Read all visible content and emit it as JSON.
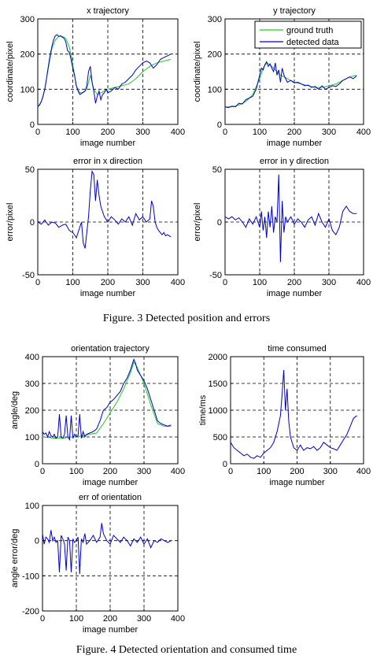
{
  "captions": {
    "fig3": "Figure. 3 Detected position and errors",
    "fig4": "Figure. 4 Detected orientation and consumed time"
  },
  "colors": {
    "ground_truth": "#22cc22",
    "detected": "#0000cc",
    "grid": "#000000",
    "axis": "#000000"
  },
  "chart_data": [
    {
      "id": "x-trajectory",
      "type": "line",
      "title": "x trajectory",
      "xlabel": "image number",
      "ylabel": "coordinate/pixel",
      "xlim": [
        0,
        400
      ],
      "ylim": [
        0,
        300
      ],
      "xticks": [
        0,
        100,
        200,
        300,
        400
      ],
      "yticks": [
        0,
        100,
        200,
        300
      ],
      "grid": true,
      "legend": null,
      "series": [
        {
          "name": "ground truth",
          "color": "#22cc22",
          "x": [
            0,
            10,
            20,
            30,
            40,
            50,
            60,
            70,
            80,
            90,
            100,
            110,
            120,
            130,
            140,
            150,
            160,
            170,
            180,
            190,
            200,
            220,
            240,
            260,
            280,
            300,
            320,
            340,
            360,
            380
          ],
          "y": [
            50,
            65,
            100,
            160,
            215,
            240,
            250,
            250,
            245,
            220,
            170,
            110,
            90,
            90,
            100,
            140,
            100,
            85,
            90,
            95,
            100,
            105,
            110,
            115,
            130,
            150,
            165,
            175,
            180,
            185
          ]
        },
        {
          "color": "#0000cc",
          "x": [
            0,
            5,
            10,
            15,
            20,
            25,
            30,
            35,
            40,
            45,
            50,
            55,
            60,
            65,
            70,
            75,
            80,
            85,
            90,
            95,
            100,
            105,
            110,
            115,
            120,
            125,
            130,
            135,
            140,
            145,
            150,
            155,
            160,
            165,
            170,
            175,
            180,
            185,
            190,
            195,
            200,
            210,
            220,
            230,
            240,
            250,
            260,
            270,
            280,
            290,
            300,
            310,
            320,
            330,
            340,
            350,
            360,
            370,
            380
          ],
          "y": [
            50,
            55,
            65,
            80,
            100,
            130,
            165,
            195,
            220,
            240,
            252,
            255,
            250,
            252,
            248,
            245,
            235,
            210,
            205,
            185,
            160,
            140,
            110,
            95,
            85,
            88,
            92,
            95,
            110,
            150,
            165,
            120,
            95,
            60,
            80,
            95,
            70,
            85,
            90,
            100,
            90,
            95,
            105,
            100,
            115,
            120,
            130,
            140,
            155,
            165,
            175,
            180,
            175,
            160,
            170,
            185,
            190,
            195,
            200
          ]
        }
      ]
    },
    {
      "id": "y-trajectory",
      "type": "line",
      "title": "y  trajectory",
      "xlabel": "image number",
      "ylabel": "coordinate/pixel",
      "xlim": [
        0,
        400
      ],
      "ylim": [
        0,
        300
      ],
      "xticks": [
        0,
        100,
        200,
        300,
        400
      ],
      "yticks": [
        0,
        100,
        200,
        300
      ],
      "grid": true,
      "legend": "top-right",
      "series": [
        {
          "name": "ground truth",
          "color": "#22cc22",
          "x": [
            0,
            20,
            40,
            60,
            80,
            100,
            110,
            120,
            130,
            140,
            150,
            160,
            180,
            200,
            220,
            240,
            260,
            280,
            300,
            320,
            340,
            360,
            380
          ],
          "y": [
            50,
            50,
            55,
            65,
            85,
            130,
            160,
            175,
            170,
            160,
            150,
            140,
            130,
            120,
            115,
            110,
            105,
            105,
            110,
            115,
            125,
            135,
            140
          ]
        },
        {
          "name": "detected data",
          "color": "#0000cc",
          "x": [
            0,
            10,
            20,
            30,
            40,
            50,
            60,
            70,
            80,
            90,
            100,
            105,
            110,
            115,
            120,
            125,
            130,
            135,
            140,
            145,
            150,
            155,
            160,
            165,
            170,
            175,
            180,
            190,
            200,
            210,
            220,
            230,
            240,
            250,
            260,
            270,
            280,
            290,
            300,
            310,
            320,
            330,
            340,
            350,
            360,
            370,
            380
          ],
          "y": [
            50,
            48,
            52,
            50,
            60,
            58,
            70,
            75,
            80,
            100,
            140,
            160,
            155,
            170,
            178,
            165,
            172,
            160,
            150,
            175,
            140,
            155,
            120,
            160,
            140,
            130,
            120,
            125,
            118,
            120,
            115,
            110,
            112,
            105,
            108,
            100,
            110,
            100,
            105,
            110,
            108,
            115,
            125,
            130,
            135,
            130,
            138
          ]
        }
      ]
    },
    {
      "id": "x-error",
      "type": "line",
      "title": "error in x direction",
      "xlabel": "image number",
      "ylabel": "error/pixel",
      "xlim": [
        0,
        400
      ],
      "ylim": [
        -50,
        50
      ],
      "xticks": [
        0,
        100,
        200,
        300,
        400
      ],
      "yticks": [
        -50,
        0,
        50
      ],
      "grid": true,
      "legend": null,
      "series": [
        {
          "color": "#0000cc",
          "x": [
            0,
            10,
            20,
            30,
            40,
            50,
            60,
            70,
            80,
            90,
            100,
            105,
            110,
            115,
            120,
            125,
            130,
            135,
            140,
            145,
            150,
            155,
            160,
            165,
            170,
            175,
            180,
            185,
            190,
            200,
            210,
            220,
            230,
            240,
            250,
            260,
            270,
            280,
            290,
            300,
            310,
            320,
            325,
            330,
            335,
            340,
            345,
            350,
            355,
            360,
            365,
            370,
            380
          ],
          "y": [
            0,
            -2,
            2,
            -3,
            0,
            -1,
            -5,
            -3,
            -2,
            -8,
            -10,
            -12,
            -15,
            -10,
            -5,
            0,
            -20,
            -25,
            -10,
            5,
            30,
            48,
            45,
            20,
            40,
            25,
            15,
            10,
            5,
            0,
            5,
            2,
            -2,
            3,
            0,
            5,
            -3,
            8,
            2,
            5,
            0,
            3,
            20,
            15,
            0,
            -5,
            -8,
            -10,
            -12,
            -10,
            -13,
            -12,
            -14
          ]
        }
      ]
    },
    {
      "id": "y-error",
      "type": "line",
      "title": "error in y direction",
      "xlabel": "image number",
      "ylabel": "error/pixel",
      "xlim": [
        0,
        400
      ],
      "ylim": [
        -50,
        50
      ],
      "xticks": [
        0,
        100,
        200,
        300,
        400
      ],
      "yticks": [
        -50,
        0,
        50
      ],
      "grid": true,
      "legend": null,
      "series": [
        {
          "color": "#0000cc",
          "x": [
            0,
            10,
            20,
            30,
            40,
            50,
            60,
            70,
            80,
            90,
            100,
            105,
            110,
            115,
            120,
            125,
            130,
            135,
            140,
            145,
            150,
            155,
            160,
            165,
            170,
            175,
            180,
            190,
            200,
            210,
            220,
            230,
            240,
            250,
            260,
            270,
            280,
            290,
            300,
            310,
            320,
            330,
            340,
            350,
            360,
            370,
            380
          ],
          "y": [
            5,
            3,
            5,
            2,
            4,
            0,
            -5,
            3,
            -2,
            5,
            -5,
            10,
            -8,
            5,
            -15,
            10,
            -5,
            15,
            -10,
            5,
            0,
            45,
            -38,
            20,
            -10,
            5,
            0,
            5,
            -2,
            3,
            0,
            -5,
            2,
            5,
            -3,
            8,
            0,
            -5,
            3,
            -8,
            -12,
            -5,
            10,
            15,
            10,
            8,
            8
          ]
        }
      ]
    },
    {
      "id": "orientation-trajectory",
      "type": "line",
      "title": "orientation trajectory",
      "xlabel": "image number",
      "ylabel": "angle/deg",
      "xlim": [
        0,
        400
      ],
      "ylim": [
        0,
        400
      ],
      "xticks": [
        0,
        100,
        200,
        300,
        400
      ],
      "yticks": [
        0,
        100,
        200,
        300,
        400
      ],
      "grid": true,
      "legend": null,
      "series": [
        {
          "name": "ground truth",
          "color": "#22cc22",
          "x": [
            0,
            20,
            40,
            60,
            80,
            100,
            120,
            140,
            160,
            180,
            200,
            220,
            240,
            260,
            270,
            280,
            300,
            320,
            340,
            360,
            380
          ],
          "y": [
            100,
            98,
            95,
            95,
            100,
            100,
            105,
            110,
            115,
            150,
            190,
            230,
            280,
            340,
            380,
            360,
            300,
            220,
            150,
            140,
            140
          ]
        },
        {
          "color": "#0000cc",
          "x": [
            0,
            5,
            10,
            15,
            20,
            25,
            30,
            35,
            40,
            45,
            50,
            55,
            60,
            65,
            70,
            75,
            80,
            85,
            90,
            95,
            100,
            105,
            110,
            115,
            120,
            125,
            130,
            140,
            150,
            160,
            170,
            180,
            190,
            200,
            210,
            220,
            230,
            240,
            250,
            260,
            265,
            270,
            275,
            280,
            290,
            300,
            310,
            320,
            330,
            340,
            350,
            360,
            370,
            380
          ],
          "y": [
            120,
            110,
            115,
            100,
            120,
            105,
            100,
            110,
            95,
            100,
            185,
            100,
            95,
            110,
            180,
            100,
            90,
            180,
            95,
            110,
            100,
            105,
            185,
            95,
            120,
            100,
            110,
            115,
            120,
            130,
            160,
            200,
            210,
            230,
            240,
            255,
            270,
            300,
            320,
            350,
            370,
            390,
            375,
            350,
            330,
            310,
            280,
            240,
            200,
            160,
            150,
            145,
            140,
            145
          ]
        }
      ]
    },
    {
      "id": "time-consumed",
      "type": "line",
      "title": "time consumed",
      "xlabel": "image number",
      "ylabel": "time/ms",
      "xlim": [
        0,
        400
      ],
      "ylim": [
        0,
        2000
      ],
      "xticks": [
        0,
        100,
        200,
        300,
        400
      ],
      "yticks": [
        0,
        500,
        1000,
        1500,
        2000
      ],
      "grid": true,
      "legend": null,
      "series": [
        {
          "color": "#0000cc",
          "x": [
            0,
            10,
            20,
            30,
            40,
            50,
            60,
            70,
            80,
            90,
            100,
            110,
            120,
            130,
            140,
            150,
            155,
            160,
            165,
            170,
            175,
            180,
            190,
            200,
            210,
            220,
            230,
            240,
            250,
            260,
            270,
            280,
            290,
            300,
            310,
            320,
            330,
            340,
            350,
            360,
            370,
            380
          ],
          "y": [
            400,
            300,
            250,
            200,
            150,
            180,
            120,
            100,
            150,
            120,
            200,
            250,
            300,
            400,
            600,
            900,
            1300,
            1750,
            1000,
            1400,
            800,
            500,
            300,
            250,
            350,
            250,
            300,
            280,
            320,
            250,
            300,
            400,
            350,
            300,
            280,
            250,
            350,
            450,
            550,
            700,
            850,
            900
          ]
        }
      ]
    },
    {
      "id": "orientation-error",
      "type": "line",
      "title": "err of orientation",
      "xlabel": "image number",
      "ylabel": "angle error/deg",
      "xlim": [
        0,
        400
      ],
      "ylim": [
        -200,
        100
      ],
      "xticks": [
        0,
        100,
        200,
        300,
        400
      ],
      "yticks": [
        -200,
        -100,
        0,
        100
      ],
      "grid": true,
      "legend": null,
      "series": [
        {
          "color": "#0000cc",
          "x": [
            0,
            5,
            10,
            15,
            20,
            25,
            30,
            35,
            40,
            45,
            50,
            55,
            60,
            65,
            70,
            75,
            80,
            85,
            90,
            95,
            100,
            105,
            110,
            115,
            120,
            125,
            130,
            140,
            150,
            160,
            170,
            175,
            180,
            190,
            200,
            210,
            220,
            230,
            240,
            250,
            260,
            270,
            280,
            290,
            300,
            310,
            320,
            330,
            340,
            350,
            360,
            370,
            380
          ],
          "y": [
            20,
            -10,
            10,
            5,
            -5,
            30,
            0,
            10,
            -5,
            0,
            -90,
            15,
            5,
            -10,
            -85,
            10,
            0,
            -90,
            5,
            -5,
            0,
            10,
            -95,
            5,
            -5,
            20,
            -10,
            0,
            15,
            -5,
            10,
            50,
            20,
            0,
            -10,
            15,
            5,
            -5,
            10,
            0,
            -15,
            5,
            -5,
            10,
            -10,
            5,
            -20,
            0,
            -5,
            5,
            0,
            -5,
            0
          ]
        }
      ]
    }
  ]
}
